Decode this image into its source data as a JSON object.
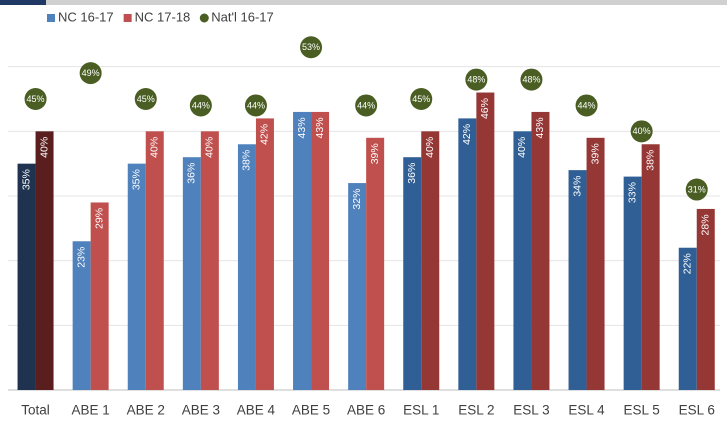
{
  "chart_data": {
    "type": "bar",
    "categories": [
      "Total",
      "ABE 1",
      "ABE 2",
      "ABE 3",
      "ABE 4",
      "ABE 5",
      "ABE 6",
      "ESL 1",
      "ESL 2",
      "ESL 3",
      "ESL 4",
      "ESL 5",
      "ESL 6"
    ],
    "series": [
      {
        "name": "NC 16-17",
        "color": "#4f81bd",
        "colors": [
          "#1f3350",
          "#4f81bd",
          "#4f81bd",
          "#4f81bd",
          "#4f81bd",
          "#4f81bd",
          "#4f81bd",
          "#2f5f94",
          "#2f5f94",
          "#2f5f94",
          "#2f5f94",
          "#2f5f94",
          "#2f5f94"
        ],
        "values": [
          35,
          23,
          35,
          36,
          38,
          43,
          32,
          36,
          42,
          40,
          34,
          33,
          22
        ],
        "value_labels": [
          "35%",
          "23%",
          "35%",
          "36%",
          "38%",
          "43%",
          "32%",
          "36%",
          "42%",
          "40%",
          "34%",
          "33%",
          "22%"
        ]
      },
      {
        "name": "NC 17-18",
        "color": "#c0504d",
        "colors": [
          "#5a1e1e",
          "#c0504d",
          "#c0504d",
          "#c0504d",
          "#c0504d",
          "#c0504d",
          "#c0504d",
          "#953735",
          "#953735",
          "#953735",
          "#953735",
          "#953735",
          "#953735"
        ],
        "values": [
          40,
          29,
          40,
          40,
          42,
          43,
          39,
          40,
          46,
          43,
          39,
          38,
          28
        ],
        "value_labels": [
          "40%",
          "29%",
          "40%",
          "40%",
          "42%",
          "43%",
          "39%",
          "40%",
          "46%",
          "43%",
          "39%",
          "38%",
          "28%"
        ]
      },
      {
        "name": "Nat'l 16-17",
        "color": "#4a5e23",
        "type": "dot",
        "values": [
          45,
          49,
          45,
          44,
          44,
          53,
          44,
          45,
          48,
          48,
          44,
          40,
          31
        ],
        "value_labels": [
          "45%",
          "49%",
          "45%",
          "44%",
          "44%",
          "53%",
          "44%",
          "45%",
          "48%",
          "48%",
          "44%",
          "40%",
          "31%"
        ]
      }
    ],
    "ylim": [
      0,
      60
    ],
    "yticks": [
      0,
      10,
      20,
      30,
      40,
      50
    ],
    "grid": true
  }
}
